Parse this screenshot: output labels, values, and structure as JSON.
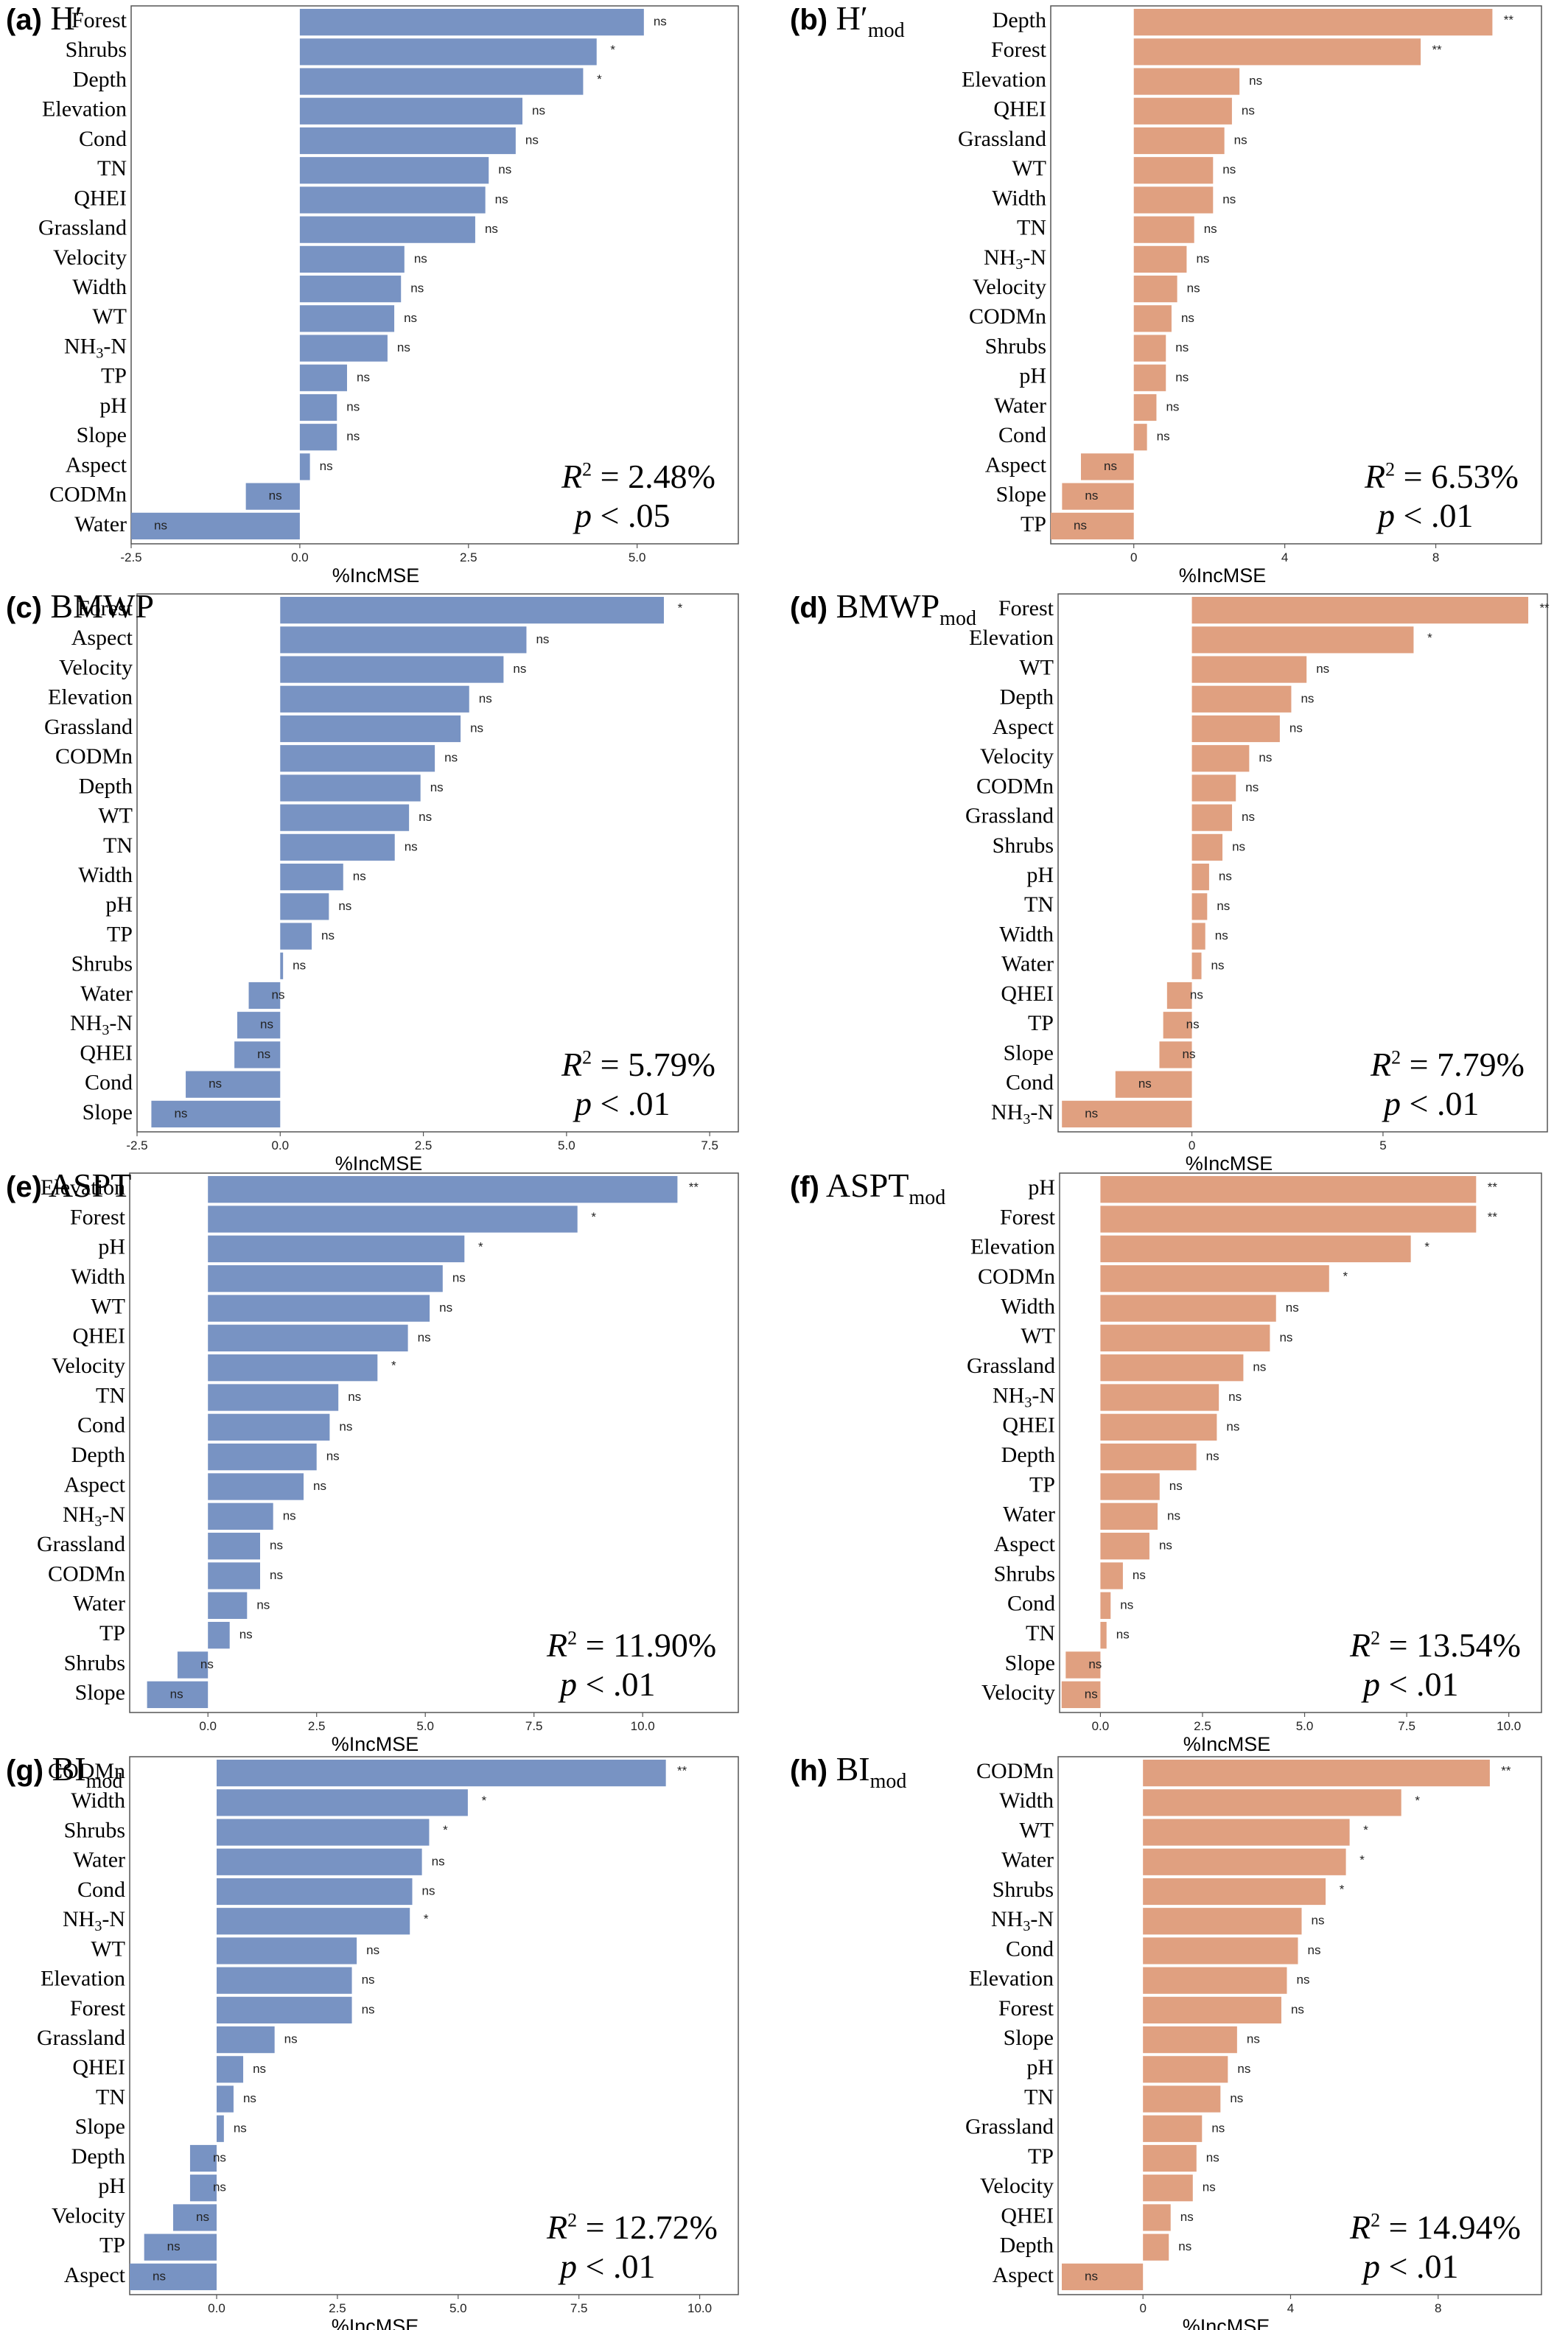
{
  "colors": {
    "blue": "#7893c3",
    "orange": "#e0a080",
    "frame": "#555555"
  },
  "chart_data": [
    {
      "id": "a",
      "type": "bar",
      "orientation": "horizontal",
      "panel_label": "(a)",
      "title": "H′",
      "title_sub": "",
      "xlabel": "%IncMSE",
      "xlim": [
        -2.5,
        6.5
      ],
      "xticks": [
        -2.5,
        0.0,
        2.5,
        5.0
      ],
      "tick_decimals": 1,
      "color_key": "blue",
      "r2": "2.48%",
      "p": "< .05",
      "categories": [
        "Forest",
        "Shrubs",
        "Depth",
        "Elevation",
        "Cond",
        "TN",
        "QHEI",
        "Grassland",
        "Velocity",
        "Width",
        "WT",
        "NH3-N",
        "TP",
        "pH",
        "Slope",
        "Aspect",
        "CODMn",
        "Water"
      ],
      "values": [
        5.1,
        4.4,
        4.2,
        3.3,
        3.2,
        2.8,
        2.75,
        2.6,
        1.55,
        1.5,
        1.4,
        1.3,
        0.7,
        0.55,
        0.55,
        0.15,
        -0.8,
        -2.5
      ],
      "significance": [
        "ns",
        "*",
        "*",
        "ns",
        "ns",
        "ns",
        "ns",
        "ns",
        "ns",
        "ns",
        "ns",
        "ns",
        "ns",
        "ns",
        "ns",
        "ns",
        "ns",
        "ns"
      ]
    },
    {
      "id": "b",
      "type": "bar",
      "orientation": "horizontal",
      "panel_label": "(b)",
      "title": "H′",
      "title_sub": "mod",
      "xlabel": "%IncMSE",
      "xlim": [
        -2.2,
        10.8
      ],
      "xticks": [
        0,
        4,
        8
      ],
      "tick_decimals": 0,
      "color_key": "orange",
      "r2": "6.53%",
      "p": "< .01",
      "categories": [
        "Depth",
        "Forest",
        "Elevation",
        "QHEI",
        "Grassland",
        "WT",
        "Width",
        "TN",
        "NH3-N",
        "Velocity",
        "CODMn",
        "Shrubs",
        "pH",
        "Water",
        "Cond",
        "Aspect",
        "Slope",
        "TP"
      ],
      "values": [
        9.5,
        7.6,
        2.8,
        2.6,
        2.4,
        2.1,
        2.1,
        1.6,
        1.4,
        1.15,
        1.0,
        0.85,
        0.85,
        0.6,
        0.35,
        -1.4,
        -1.9,
        -2.2
      ],
      "significance": [
        "**",
        "**",
        "ns",
        "ns",
        "ns",
        "ns",
        "ns",
        "ns",
        "ns",
        "ns",
        "ns",
        "ns",
        "ns",
        "ns",
        "ns",
        "ns",
        "ns",
        "ns"
      ]
    },
    {
      "id": "c",
      "type": "bar",
      "orientation": "horizontal",
      "panel_label": "(c)",
      "title": "BMWP",
      "title_sub": "",
      "xlabel": "%IncMSE",
      "xlim": [
        -2.5,
        8.0
      ],
      "xticks": [
        -2.5,
        0.0,
        2.5,
        5.0,
        7.5
      ],
      "tick_decimals": 1,
      "color_key": "blue",
      "r2": "5.79%",
      "p": "< .01",
      "categories": [
        "Forest",
        "Aspect",
        "Velocity",
        "Elevation",
        "Grassland",
        "CODMn",
        "Depth",
        "WT",
        "TN",
        "Width",
        "pH",
        "TP",
        "Shrubs",
        "Water",
        "NH3-N",
        "QHEI",
        "Cond",
        "Slope"
      ],
      "values": [
        6.7,
        4.3,
        3.9,
        3.3,
        3.15,
        2.7,
        2.45,
        2.25,
        2.0,
        1.1,
        0.85,
        0.55,
        0.05,
        -0.55,
        -0.75,
        -0.8,
        -1.65,
        -2.25
      ],
      "significance": [
        "*",
        "ns",
        "ns",
        "ns",
        "ns",
        "ns",
        "ns",
        "ns",
        "ns",
        "ns",
        "ns",
        "ns",
        "ns",
        "ns",
        "ns",
        "ns",
        "ns",
        "ns"
      ]
    },
    {
      "id": "d",
      "type": "bar",
      "orientation": "horizontal",
      "panel_label": "(d)",
      "title": "BMWP",
      "title_sub": "mod",
      "xlabel": "%IncMSE",
      "xlim": [
        -3.5,
        9.3
      ],
      "xticks": [
        0,
        5
      ],
      "tick_decimals": 0,
      "color_key": "orange",
      "r2": "7.79%",
      "p": "< .01",
      "categories": [
        "Forest",
        "Elevation",
        "WT",
        "Depth",
        "Aspect",
        "Velocity",
        "CODMn",
        "Grassland",
        "Shrubs",
        "pH",
        "TN",
        "Width",
        "Water",
        "QHEI",
        "TP",
        "Slope",
        "Cond",
        "NH3-N"
      ],
      "values": [
        8.8,
        5.8,
        3.0,
        2.6,
        2.3,
        1.5,
        1.15,
        1.05,
        0.8,
        0.45,
        0.4,
        0.35,
        0.25,
        -0.65,
        -0.75,
        -0.85,
        -2.0,
        -3.4
      ],
      "significance": [
        "**",
        "*",
        "ns",
        "ns",
        "ns",
        "ns",
        "ns",
        "ns",
        "ns",
        "ns",
        "ns",
        "ns",
        "ns",
        "ns",
        "ns",
        "ns",
        "ns",
        "ns"
      ]
    },
    {
      "id": "e",
      "type": "bar",
      "orientation": "horizontal",
      "panel_label": "(e)",
      "title": "ASPT",
      "title_sub": "",
      "xlabel": "%IncMSE",
      "xlim": [
        -1.8,
        12.2
      ],
      "xticks": [
        0.0,
        2.5,
        5.0,
        7.5,
        10.0
      ],
      "tick_decimals": 1,
      "color_key": "blue",
      "r2": "11.90%",
      "p": "< .01",
      "categories": [
        "Elevation",
        "Forest",
        "pH",
        "Width",
        "WT",
        "QHEI",
        "Velocity",
        "TN",
        "Cond",
        "Depth",
        "Aspect",
        "NH3-N",
        "Grassland",
        "CODMn",
        "Water",
        "TP",
        "Shrubs",
        "Slope"
      ],
      "values": [
        10.8,
        8.5,
        5.9,
        5.4,
        5.1,
        4.6,
        3.9,
        3.0,
        2.8,
        2.5,
        2.2,
        1.5,
        1.2,
        1.2,
        0.9,
        0.5,
        -0.7,
        -1.4
      ],
      "significance": [
        "**",
        "*",
        "*",
        "ns",
        "ns",
        "ns",
        "*",
        "ns",
        "ns",
        "ns",
        "ns",
        "ns",
        "ns",
        "ns",
        "ns",
        "ns",
        "ns",
        "ns"
      ]
    },
    {
      "id": "f",
      "type": "bar",
      "orientation": "horizontal",
      "panel_label": "(f)",
      "title": "ASPT",
      "title_sub": "mod",
      "xlabel": "%IncMSE",
      "xlim": [
        -1.0,
        10.8
      ],
      "xticks": [
        0.0,
        2.5,
        5.0,
        7.5,
        10.0
      ],
      "tick_decimals": 1,
      "color_key": "orange",
      "r2": "13.54%",
      "p": "< .01",
      "categories": [
        "pH",
        "Forest",
        "Elevation",
        "CODMn",
        "Width",
        "WT",
        "Grassland",
        "NH3-N",
        "QHEI",
        "Depth",
        "TP",
        "Water",
        "Aspect",
        "Shrubs",
        "Cond",
        "TN",
        "Slope",
        "Velocity"
      ],
      "values": [
        9.2,
        9.2,
        7.6,
        5.6,
        4.3,
        4.15,
        3.5,
        2.9,
        2.85,
        2.35,
        1.45,
        1.4,
        1.2,
        0.55,
        0.25,
        0.15,
        -0.85,
        -0.95
      ],
      "significance": [
        "**",
        "**",
        "*",
        "*",
        "ns",
        "ns",
        "ns",
        "ns",
        "ns",
        "ns",
        "ns",
        "ns",
        "ns",
        "ns",
        "ns",
        "ns",
        "ns",
        "ns"
      ]
    },
    {
      "id": "g",
      "type": "bar",
      "orientation": "horizontal",
      "panel_label": "(g)",
      "title": "BI",
      "title_sub": "mod",
      "xlabel": "%IncMSE",
      "xlim": [
        -1.8,
        10.8
      ],
      "xticks": [
        0.0,
        2.5,
        5.0,
        7.5,
        10.0
      ],
      "tick_decimals": 1,
      "color_key": "blue",
      "r2": "12.72%",
      "p": "< .01",
      "categories": [
        "CODMn",
        "Width",
        "Shrubs",
        "Water",
        "Cond",
        "NH3-N",
        "WT",
        "Elevation",
        "Forest",
        "Grassland",
        "QHEI",
        "TN",
        "Slope",
        "Depth",
        "pH",
        "Velocity",
        "TP",
        "Aspect"
      ],
      "values": [
        9.3,
        5.2,
        4.4,
        4.25,
        4.05,
        4.0,
        2.9,
        2.8,
        2.8,
        1.2,
        0.55,
        0.35,
        0.15,
        -0.55,
        -0.55,
        -0.9,
        -1.5,
        -1.8
      ],
      "significance": [
        "**",
        "*",
        "*",
        "ns",
        "ns",
        "*",
        "ns",
        "ns",
        "ns",
        "ns",
        "ns",
        "ns",
        "ns",
        "ns",
        "ns",
        "ns",
        "ns",
        "ns"
      ]
    },
    {
      "id": "h",
      "type": "bar",
      "orientation": "horizontal",
      "panel_label": "(h)",
      "title": "BI",
      "title_sub": "mod",
      "xlabel": "%IncMSE",
      "xlim": [
        -2.3,
        10.8
      ],
      "xticks": [
        0,
        4,
        8
      ],
      "tick_decimals": 0,
      "color_key": "orange",
      "r2": "14.94%",
      "p": "< .01",
      "categories": [
        "CODMn",
        "Width",
        "WT",
        "Water",
        "Shrubs",
        "NH3-N",
        "Cond",
        "Elevation",
        "Forest",
        "Slope",
        "pH",
        "TN",
        "Grassland",
        "TP",
        "Velocity",
        "QHEI",
        "Depth",
        "Aspect"
      ],
      "values": [
        9.4,
        7.0,
        5.6,
        5.5,
        4.95,
        4.3,
        4.2,
        3.9,
        3.75,
        2.55,
        2.3,
        2.1,
        1.6,
        1.45,
        1.35,
        0.75,
        0.7,
        -2.2
      ],
      "significance": [
        "**",
        "*",
        "*",
        "*",
        "*",
        "ns",
        "ns",
        "ns",
        "ns",
        "ns",
        "ns",
        "ns",
        "ns",
        "ns",
        "ns",
        "ns",
        "ns",
        "ns"
      ]
    }
  ]
}
